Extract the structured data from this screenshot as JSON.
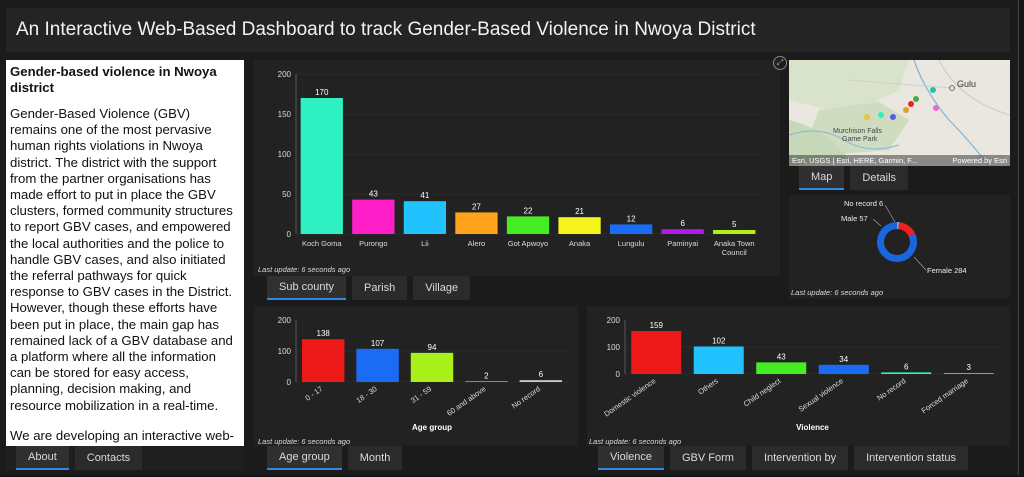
{
  "header": {
    "title": "An Interactive Web-Based Dashboard to track Gender-Based Violence in Nwoya District"
  },
  "intro": {
    "heading": "Gender-based violence in Nwoya district",
    "para1": "Gender-Based Violence (GBV) remains one of the most pervasive human rights violations in Nwoya district. The district with the support from the partner organisations has made effort to put in place the GBV clusters, formed community structures to report GBV cases, and empowered the local authorities and the police to handle GBV cases, and also initiated the referral pathways for quick response to GBV cases in the District. However, though these efforts have been put in place, the main gap has remained lack of a GBV database and a platform where all the information can be stored for easy access, planning, decision making, and resource mobilization in a real-time.",
    "para2": "We are developing an interactive web-based dashboard to track GBV in a real-time. This will enable users to get information about GBV in Nwoya"
  },
  "tabs_intro": [
    "About",
    "Contacts"
  ],
  "tabs_sub": [
    "Sub county",
    "Parish",
    "Village"
  ],
  "tabs_map": [
    "Map",
    "Details"
  ],
  "tabs_age": [
    "Age group",
    "Month"
  ],
  "tabs_violence": [
    "Violence",
    "GBV Form",
    "Intervention by",
    "Intervention status"
  ],
  "last_update": "Last update: 6 seconds ago",
  "map": {
    "labels": {
      "city": "Gulu",
      "park": "Murchison Falls Game Park"
    },
    "attribution": "Esri, USGS | Esri, HERE, Garmin, F...",
    "powered": "Powered by Esri"
  },
  "chart_data": [
    {
      "type": "bar",
      "categories": [
        "Koch Goma",
        "Purongo",
        "Lii",
        "Alero",
        "Got Apwoyo",
        "Anaka",
        "Lungulu",
        "Paminyai",
        "Anaka Town Council"
      ],
      "values": [
        170,
        43,
        41,
        27,
        22,
        21,
        12,
        6,
        5
      ],
      "colors": [
        "#2ff0c0",
        "#ff1fc8",
        "#22c2ff",
        "#ffa41a",
        "#44ee22",
        "#f4f41a",
        "#1a6cf4",
        "#b21ae8",
        "#b2ef1a"
      ],
      "ylim": [
        0,
        200
      ],
      "yticks": [
        0,
        50,
        100,
        150,
        200
      ]
    },
    {
      "type": "pie",
      "categories": [
        "No record",
        "Male",
        "Female"
      ],
      "values": [
        6,
        57,
        284
      ],
      "colors": [
        "#9aa0a8",
        "#ee2020",
        "#1a66dd"
      ],
      "labels": [
        "No record 6",
        "Male 57",
        "Female 284"
      ]
    },
    {
      "type": "bar",
      "xlabel": "Age group",
      "categories": [
        "0 - 17",
        "18 - 30",
        "31 - 59",
        "60 and above",
        "No record"
      ],
      "values": [
        138,
        107,
        94,
        2,
        6
      ],
      "colors": [
        "#ee1a1a",
        "#1a6cf4",
        "#a8f01a",
        "#c8c8c8",
        "#c8c8c8"
      ],
      "ylim": [
        0,
        200
      ],
      "yticks": [
        0,
        100,
        200
      ]
    },
    {
      "type": "bar",
      "xlabel": "Violence",
      "categories": [
        "Domestic violence",
        "Others",
        "Child neglect",
        "Sexual violence",
        "No record",
        "Forced marriage"
      ],
      "values": [
        159,
        102,
        43,
        34,
        6,
        3
      ],
      "colors": [
        "#ee1a1a",
        "#22c2ff",
        "#44ee22",
        "#1a6cf4",
        "#2ff0c0",
        "#88e81a"
      ],
      "ylim": [
        0,
        200
      ],
      "yticks": [
        0,
        100,
        200
      ]
    }
  ]
}
